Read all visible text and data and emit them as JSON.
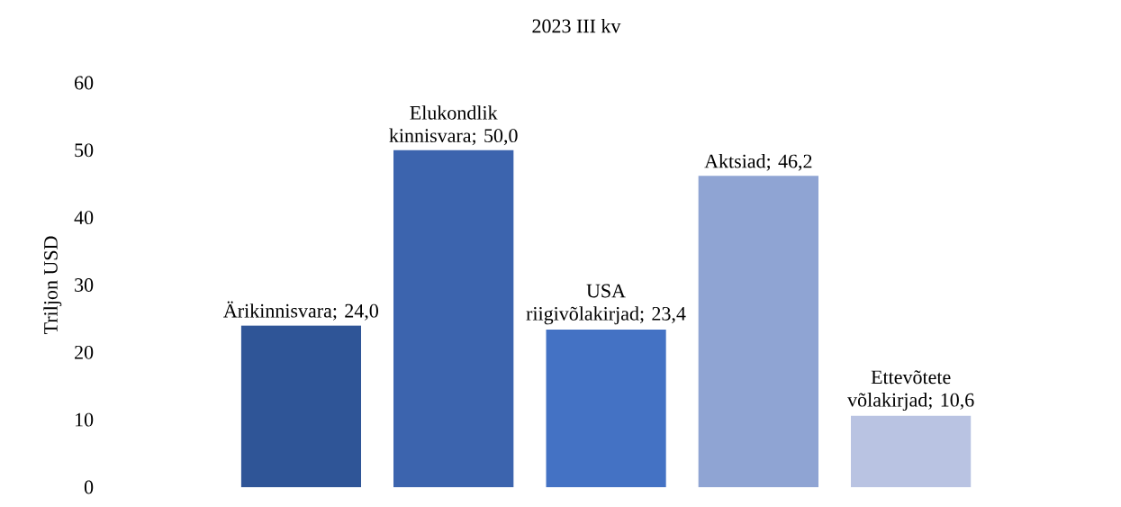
{
  "chart_data": {
    "type": "bar",
    "title": "2023 III kv",
    "ylabel": "Triljon USD",
    "categories": [
      null,
      null,
      null,
      null,
      null
    ],
    "values": [
      24.0,
      50.0,
      23.4,
      46.2,
      10.6
    ],
    "colors": [
      "#2f5597",
      "#3c64ae",
      "#4472c4",
      "#8fa4d3",
      "#b9c3e2"
    ],
    "value_labels": [
      "Ärikinnisvara; 24,0",
      "Elukondlik kinnisvara; 50,0",
      "USA riigivõlakirjad; 23,4",
      "Aktsiad; 46,2",
      "Ettevõtete võlakirjad; 10,6"
    ],
    "ylim": [
      0,
      60
    ],
    "yticks": [
      0,
      10,
      20,
      30,
      40,
      50,
      60
    ],
    "tick_labels": "y"
  }
}
